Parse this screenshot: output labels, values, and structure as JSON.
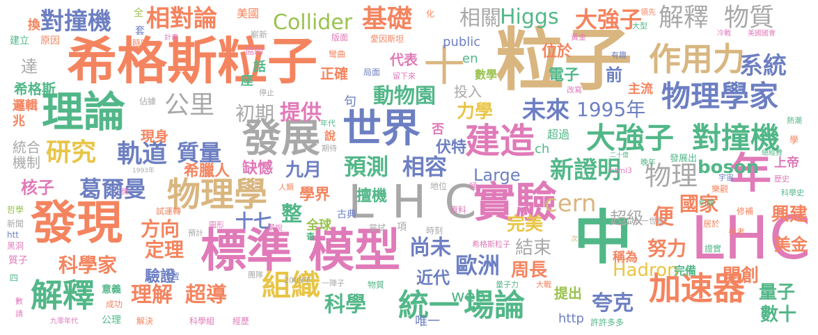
{
  "palette": {
    "orange": "#f4845f",
    "teal": "#52b788",
    "blue": "#6d7fc2",
    "pink": "#e07ab8",
    "green": "#99c24d",
    "tan": "#d9b680",
    "gray": "#a8a8a8",
    "yellow": "#e8c547"
  },
  "words": [
    {
      "text": "希格斯粒子",
      "color": "orange"
    },
    {
      "text": "粒子",
      "color": "tan"
    },
    {
      "text": "標準 模型",
      "color": "pink"
    },
    {
      "text": "LHC",
      "color": "gray"
    },
    {
      "text": "LHC",
      "color": "pink"
    },
    {
      "text": "中",
      "color": "teal"
    },
    {
      "text": "發現",
      "color": "orange"
    },
    {
      "text": "理論",
      "color": "teal"
    },
    {
      "text": "世界",
      "color": "blue"
    },
    {
      "text": "發展",
      "color": "gray"
    },
    {
      "text": "實驗",
      "color": "pink"
    },
    {
      "text": "物理學",
      "color": "tan"
    },
    {
      "text": "建造",
      "color": "pink"
    },
    {
      "text": "年",
      "color": "pink"
    },
    {
      "text": "作用力",
      "color": "tan"
    },
    {
      "text": "物理學家",
      "color": "blue"
    },
    {
      "text": "大強子",
      "color": "teal"
    },
    {
      "text": "對撞機",
      "color": "teal"
    },
    {
      "text": "加速器",
      "color": "orange"
    },
    {
      "text": "統一",
      "color": "teal"
    },
    {
      "text": "場論",
      "color": "teal"
    },
    {
      "text": "組織",
      "color": "yellow"
    },
    {
      "text": "解釋",
      "color": "teal"
    },
    {
      "text": "解釋",
      "color": "gray"
    },
    {
      "text": "物質",
      "color": "gray"
    },
    {
      "text": "對撞機",
      "color": "blue"
    },
    {
      "text": "相對論",
      "color": "orange"
    },
    {
      "text": "Collider",
      "color": "green"
    },
    {
      "text": "基礎",
      "color": "orange"
    },
    {
      "text": "相關",
      "color": "gray"
    },
    {
      "text": "Higgs",
      "color": "teal"
    },
    {
      "text": "大強子",
      "color": "orange"
    },
    {
      "text": "十",
      "color": "tan"
    },
    {
      "text": "研究",
      "color": "yellow"
    },
    {
      "text": "公里",
      "color": "gray"
    },
    {
      "text": "軌道",
      "color": "blue"
    },
    {
      "text": "質量",
      "color": "blue"
    },
    {
      "text": "葛爾曼",
      "color": "blue"
    },
    {
      "text": "初期",
      "color": "gray"
    },
    {
      "text": "提供",
      "color": "pink"
    },
    {
      "text": "動物園",
      "color": "teal"
    },
    {
      "text": "未來",
      "color": "blue"
    },
    {
      "text": "1995年",
      "color": "blue"
    },
    {
      "text": "系統",
      "color": "blue"
    },
    {
      "text": "預測",
      "color": "teal"
    },
    {
      "text": "相容",
      "color": "blue"
    },
    {
      "text": "九月",
      "color": "blue"
    },
    {
      "text": "力學",
      "color": "yellow"
    },
    {
      "text": "新證明",
      "color": "teal"
    },
    {
      "text": "物理",
      "color": "gray"
    },
    {
      "text": "boson",
      "color": "teal"
    },
    {
      "text": "cern",
      "color": "tan"
    },
    {
      "text": "國家",
      "color": "orange"
    },
    {
      "text": "興建",
      "color": "orange"
    },
    {
      "text": "方向",
      "color": "orange"
    },
    {
      "text": "定理",
      "color": "orange"
    },
    {
      "text": "科學家",
      "color": "orange"
    },
    {
      "text": "理解",
      "color": "orange"
    },
    {
      "text": "超導",
      "color": "orange"
    },
    {
      "text": "十七",
      "color": "blue"
    },
    {
      "text": "整",
      "color": "teal"
    },
    {
      "text": "尚未",
      "color": "blue"
    },
    {
      "text": "歐洲",
      "color": "blue"
    },
    {
      "text": "近代",
      "color": "blue"
    },
    {
      "text": "結束",
      "color": "gray"
    },
    {
      "text": "周長",
      "color": "orange"
    },
    {
      "text": "Hadron",
      "color": "yellow"
    },
    {
      "text": "努力",
      "color": "orange"
    },
    {
      "text": "開創",
      "color": "orange"
    },
    {
      "text": "夸克",
      "color": "blue"
    },
    {
      "text": "科學",
      "color": "teal"
    },
    {
      "text": "web",
      "color": "teal"
    },
    {
      "text": "完美",
      "color": "yellow"
    },
    {
      "text": "美金",
      "color": "orange"
    },
    {
      "text": "量子",
      "color": "teal"
    },
    {
      "text": "數十",
      "color": "teal"
    },
    {
      "text": "Large",
      "color": "blue"
    },
    {
      "text": "擅機",
      "color": "teal"
    },
    {
      "text": "學界",
      "color": "orange"
    },
    {
      "text": "核子",
      "color": "pink"
    },
    {
      "text": "希臘人",
      "color": "orange"
    },
    {
      "text": "缺憾",
      "color": "pink"
    },
    {
      "text": "驗證",
      "color": "blue"
    },
    {
      "text": "現身",
      "color": "orange"
    },
    {
      "text": "伏特",
      "color": "blue"
    },
    {
      "text": "便",
      "color": "orange"
    },
    {
      "text": "超級",
      "color": "gray"
    },
    {
      "text": "稱為",
      "color": "orange"
    },
    {
      "text": "提出",
      "color": "green"
    },
    {
      "text": "完備",
      "color": "teal"
    },
    {
      "text": "上帝",
      "color": "pink"
    },
    {
      "text": "電子",
      "color": "teal"
    },
    {
      "text": "位於",
      "color": "orange"
    },
    {
      "text": "前",
      "color": "blue"
    },
    {
      "text": "主流",
      "color": "orange"
    },
    {
      "text": "代表",
      "color": "pink"
    },
    {
      "text": "public",
      "color": "blue"
    },
    {
      "text": "en",
      "color": "teal"
    },
    {
      "text": "數學",
      "color": "green"
    },
    {
      "text": "投入",
      "color": "gray"
    },
    {
      "text": "正確",
      "color": "orange"
    },
    {
      "text": "句",
      "color": "blue"
    },
    {
      "text": "否",
      "color": "pink"
    },
    {
      "text": "ch",
      "color": "teal"
    },
    {
      "text": "超過",
      "color": "teal"
    },
    {
      "text": "http",
      "color": "blue"
    },
    {
      "text": "唯一",
      "color": "blue"
    },
    {
      "text": "機制",
      "color": "gray"
    },
    {
      "text": "統合",
      "color": "gray"
    },
    {
      "text": "邏輯",
      "color": "orange"
    },
    {
      "text": "兆",
      "color": "orange"
    },
    {
      "text": "希格斯",
      "color": "teal"
    },
    {
      "text": "達",
      "color": "gray"
    },
    {
      "text": "換",
      "color": "orange"
    },
    {
      "text": "建立",
      "color": "teal"
    },
    {
      "text": "原因",
      "color": "orange"
    },
    {
      "text": "全",
      "color": "green"
    },
    {
      "text": "套",
      "color": "blue"
    },
    {
      "text": "美國",
      "color": "orange"
    },
    {
      "text": "嶄新",
      "color": "gray"
    },
    {
      "text": "協助",
      "color": "pink"
    },
    {
      "text": "時空",
      "color": "orange"
    },
    {
      "text": "計畫",
      "color": "pink"
    },
    {
      "text": "話",
      "color": "teal"
    },
    {
      "text": "座",
      "color": "teal"
    },
    {
      "text": "停止",
      "color": "gray"
    },
    {
      "text": "佔據",
      "color": "gray"
    },
    {
      "text": "說",
      "color": "orange"
    },
    {
      "text": "年代",
      "color": "teal"
    },
    {
      "text": "期待",
      "color": "gray"
    },
    {
      "text": "全球",
      "color": "green"
    },
    {
      "text": "杳",
      "color": "teal"
    },
    {
      "text": "古典",
      "color": "blue"
    },
    {
      "text": "嘗試",
      "color": "gray"
    },
    {
      "text": "項",
      "color": "gray"
    },
    {
      "text": "時刻",
      "color": "gray"
    },
    {
      "text": "資料",
      "color": "pink"
    },
    {
      "text": "地位",
      "color": "gray"
    },
    {
      "text": "極",
      "color": "pink"
    },
    {
      "text": "人類",
      "color": "orange"
    },
    {
      "text": "學說",
      "color": "pink"
    },
    {
      "text": "試運轉",
      "color": "orange"
    },
    {
      "text": "圖形",
      "color": "pink"
    },
    {
      "text": "預計",
      "color": "gray"
    },
    {
      "text": "位置",
      "color": "blue"
    },
    {
      "text": "團隊",
      "color": "gray"
    },
    {
      "text": "2008年",
      "color": "gray"
    },
    {
      "text": "一陣子",
      "color": "gray"
    },
    {
      "text": "物質",
      "color": "teal"
    },
    {
      "text": "意義",
      "color": "teal"
    },
    {
      "text": "成功",
      "color": "orange"
    },
    {
      "text": "公理",
      "color": "teal"
    },
    {
      "text": "解決",
      "color": "orange"
    },
    {
      "text": "科學組",
      "color": "pink"
    },
    {
      "text": "經歷",
      "color": "pink"
    },
    {
      "text": "九零年代",
      "color": "pink"
    },
    {
      "text": "許許多多",
      "color": "teal"
    },
    {
      "text": "量子力",
      "color": "teal"
    },
    {
      "text": "大戰",
      "color": "orange"
    },
    {
      "text": "希格斯粒子",
      "color": "pink"
    },
    {
      "text": "次",
      "color": "tan"
    },
    {
      "text": "二十一世紀",
      "color": "gray"
    },
    {
      "text": "參考",
      "color": "orange"
    },
    {
      "text": "修補",
      "color": "orange"
    },
    {
      "text": "居於",
      "color": "orange"
    },
    {
      "text": "證實",
      "color": "teal"
    },
    {
      "text": "約論",
      "color": "teal"
    },
    {
      "text": "樂觀",
      "color": "orange"
    },
    {
      "text": "宇宙",
      "color": "blue"
    },
    {
      "text": "歷史",
      "color": "pink"
    },
    {
      "text": "科學史",
      "color": "teal"
    },
    {
      "text": "學",
      "color": "orange"
    },
    {
      "text": "總經費",
      "color": "teal"
    },
    {
      "text": "熱潮",
      "color": "teal"
    },
    {
      "text": "發展出",
      "color": "teal"
    },
    {
      "text": "晚年",
      "color": "teal"
    },
    {
      "text": "二十億",
      "color": "teal"
    },
    {
      "text": "html3",
      "color": "pink"
    },
    {
      "text": "冷戰",
      "color": "pink"
    },
    {
      "text": "美國國會",
      "color": "pink"
    },
    {
      "text": "有趣",
      "color": "blue"
    },
    {
      "text": "改寫",
      "color": "pink"
    },
    {
      "text": "黃金",
      "color": "pink"
    },
    {
      "text": "大型",
      "color": "teal"
    },
    {
      "text": "領先",
      "color": "orange"
    },
    {
      "text": "版面",
      "color": "pink"
    },
    {
      "text": "愛因斯坦",
      "color": "orange"
    },
    {
      "text": "彎曲",
      "color": "orange"
    },
    {
      "text": "局面",
      "color": "blue"
    },
    {
      "text": "留下來",
      "color": "pink"
    },
    {
      "text": "化",
      "color": "orange"
    },
    {
      "text": "1993年",
      "color": "gray"
    },
    {
      "text": "微",
      "color": "pink"
    },
    {
      "text": "哲學",
      "color": "green"
    },
    {
      "text": "新聞",
      "color": "gray"
    },
    {
      "text": "htt",
      "color": "blue"
    },
    {
      "text": "黑洞",
      "color": "pink"
    },
    {
      "text": "質子",
      "color": "pink"
    },
    {
      "text": "四",
      "color": "teal"
    },
    {
      "text": "數",
      "color": "pink"
    },
    {
      "text": "請",
      "color": "pink"
    }
  ]
}
